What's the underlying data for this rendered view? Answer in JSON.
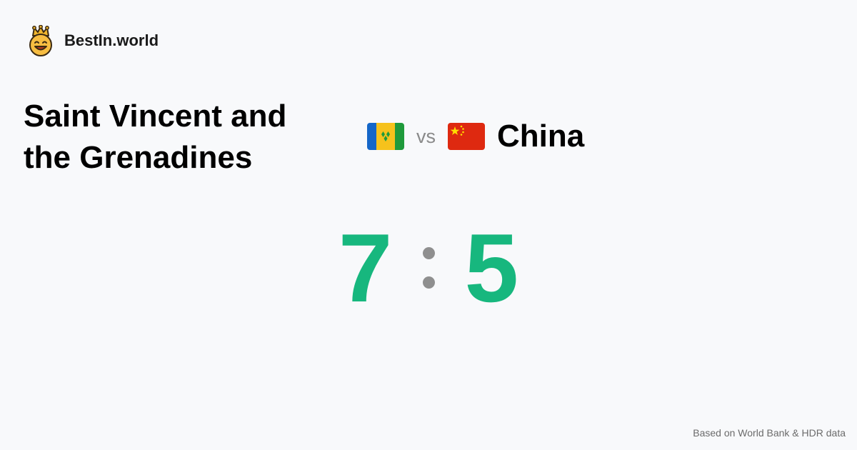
{
  "brand": {
    "name": "BestIn.world",
    "logo_icon": "crowned-smiley-icon"
  },
  "comparison": {
    "left_country": "Saint Vincent and the Grenadines",
    "left_flag_icon": "flag-saint-vincent-and-the-grenadines-icon",
    "vs_label": "vs",
    "right_country": "China",
    "right_flag_icon": "flag-china-icon"
  },
  "score": {
    "left": "7",
    "right": "5",
    "color": "#17b77e"
  },
  "footer": {
    "source_note": "Based on World Bank & HDR data"
  }
}
